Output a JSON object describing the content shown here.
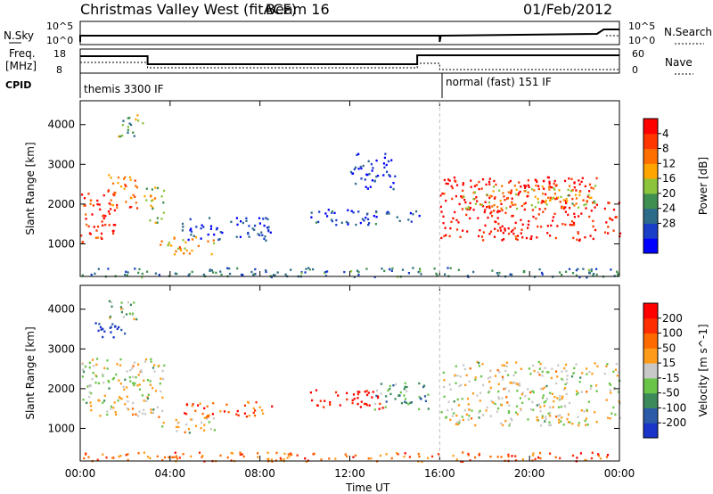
{
  "header": {
    "title": "Christmas Valley West (fitACF)",
    "beam": "Beam 16",
    "date": "01/Feb/2012"
  },
  "top_panels": {
    "nsky": {
      "label": "N.Sky",
      "yticks": [
        "10^5",
        "10^0"
      ],
      "right_label": "N.Search",
      "right_ticks": [
        "10^5",
        "10^0"
      ]
    },
    "freq": {
      "label": "Freq.",
      "unit": "[MHz]",
      "yticks": [
        "18",
        "8"
      ],
      "right_label": "Nave",
      "right_ticks": [
        "60",
        "0"
      ]
    },
    "cpid": {
      "label": "CPID",
      "modes": [
        {
          "name": "themis 3300 IF",
          "start_h": 0
        },
        {
          "name": "normal (fast) 151 IF",
          "start_h": 16
        }
      ]
    }
  },
  "chart_data": [
    {
      "type": "heatmap",
      "name": "Power",
      "ylabel": "Slant Range [km]",
      "yticks": [
        1000,
        2000,
        3000,
        4000
      ],
      "ylim": [
        180,
        4600
      ],
      "xlim": [
        0,
        24
      ],
      "colorbar": {
        "label": "Power [dB]",
        "ticks": [
          "4",
          "8",
          "12",
          "16",
          "20",
          "24",
          "28"
        ],
        "colors": [
          "#0000ff",
          "#1a3ec8",
          "#2e6b8a",
          "#3f9050",
          "#8cc43c",
          "#ffa500",
          "#ff6f00",
          "#ff3600",
          "#ff0000"
        ]
      },
      "regions": [
        {
          "t": [
            0.0,
            1.6
          ],
          "r": [
            1050,
            2400
          ],
          "level": 0.9
        },
        {
          "t": [
            1.2,
            2.6
          ],
          "r": [
            1900,
            2800
          ],
          "level": 0.75
        },
        {
          "t": [
            1.6,
            2.8
          ],
          "r": [
            3700,
            4300
          ],
          "level": 0.45
        },
        {
          "t": [
            2.8,
            3.7
          ],
          "r": [
            1500,
            2500
          ],
          "level": 0.55
        },
        {
          "t": [
            3.5,
            6.0
          ],
          "r": [
            750,
            1200
          ],
          "level": 0.65
        },
        {
          "t": [
            4.5,
            8.5
          ],
          "r": [
            1100,
            1700
          ],
          "level": 0.15
        },
        {
          "t": [
            10.2,
            15.2
          ],
          "r": [
            1500,
            1900
          ],
          "level": 0.2
        },
        {
          "t": [
            12.0,
            14.0
          ],
          "r": [
            2400,
            3300
          ],
          "level": 0.15
        },
        {
          "t": [
            16.0,
            23.0
          ],
          "r": [
            1100,
            2700
          ],
          "level": 0.95
        },
        {
          "t": [
            17.0,
            23.0
          ],
          "r": [
            1900,
            2500
          ],
          "level": 0.6
        },
        {
          "t": [
            23.3,
            24.0
          ],
          "r": [
            1200,
            2200
          ],
          "level": 0.85
        },
        {
          "t": [
            0.0,
            24.0
          ],
          "r": [
            180,
            420
          ],
          "level": 0.3
        }
      ]
    },
    {
      "type": "heatmap",
      "name": "Velocity",
      "ylabel": "Slant Range [km]",
      "yticks": [
        1000,
        2000,
        3000,
        4000
      ],
      "ylim": [
        180,
        4600
      ],
      "xlim": [
        0,
        24
      ],
      "colorbar": {
        "label": "Velocity [m s^-1]",
        "ticks": [
          "200",
          "100",
          "50",
          "15",
          "-15",
          "-50",
          "-100",
          "-200"
        ],
        "colors": [
          "#1a33c8",
          "#2a5aa8",
          "#3c8a5a",
          "#6ac44a",
          "#c8c8c8",
          "#ff9b1a",
          "#ff6a00",
          "#ff2e00",
          "#ff0000"
        ]
      },
      "regions": [
        {
          "t": [
            0.5,
            2.0
          ],
          "r": [
            3300,
            3800
          ],
          "level": 0.0
        },
        {
          "t": [
            1.2,
            2.6
          ],
          "r": [
            3700,
            4300
          ],
          "level": 0.4
        },
        {
          "t": [
            0.0,
            3.7
          ],
          "r": [
            1300,
            2800
          ],
          "level": 0.5
        },
        {
          "t": [
            3.5,
            6.0
          ],
          "r": [
            900,
            1300
          ],
          "level": 0.5
        },
        {
          "t": [
            4.5,
            8.5
          ],
          "r": [
            1300,
            1700
          ],
          "level": 0.75
        },
        {
          "t": [
            10.2,
            13.5
          ],
          "r": [
            1500,
            2000
          ],
          "level": 0.95
        },
        {
          "t": [
            13.0,
            15.5
          ],
          "r": [
            1500,
            2200
          ],
          "level": 0.3
        },
        {
          "t": [
            16.0,
            23.0
          ],
          "r": [
            1100,
            2700
          ],
          "level": 0.5
        },
        {
          "t": [
            23.3,
            24.0
          ],
          "r": [
            1200,
            2700
          ],
          "level": 0.5
        },
        {
          "t": [
            0.0,
            24.0
          ],
          "r": [
            180,
            420
          ],
          "level": 0.75
        }
      ]
    }
  ],
  "xaxis": {
    "label": "Time UT",
    "ticks": [
      "00:00",
      "04:00",
      "08:00",
      "12:00",
      "16:00",
      "20:00",
      "00:00"
    ],
    "tick_hours": [
      0,
      4,
      8,
      12,
      16,
      20,
      24
    ]
  }
}
